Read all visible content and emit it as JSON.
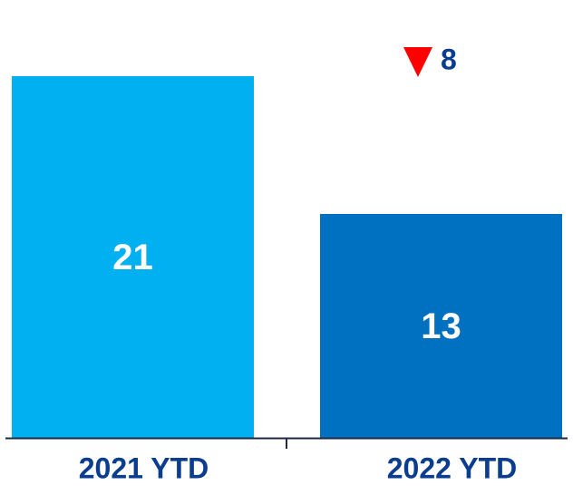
{
  "chart_data": {
    "type": "bar",
    "categories": [
      "2021 YTD",
      "2022 YTD"
    ],
    "values": [
      21,
      13
    ],
    "ylim": [
      0,
      21
    ],
    "grid": false,
    "legend": "none",
    "bar_colors": [
      "#00b0f0",
      "#0070c0"
    ],
    "value_label_color": "#ffffff",
    "category_label_color": "#0a3d8f",
    "axis_color": "#1f2a44",
    "delta": {
      "direction": "down",
      "value": "8",
      "arrow_color": "#ff0000",
      "text_color": "#0a3d8f"
    }
  }
}
